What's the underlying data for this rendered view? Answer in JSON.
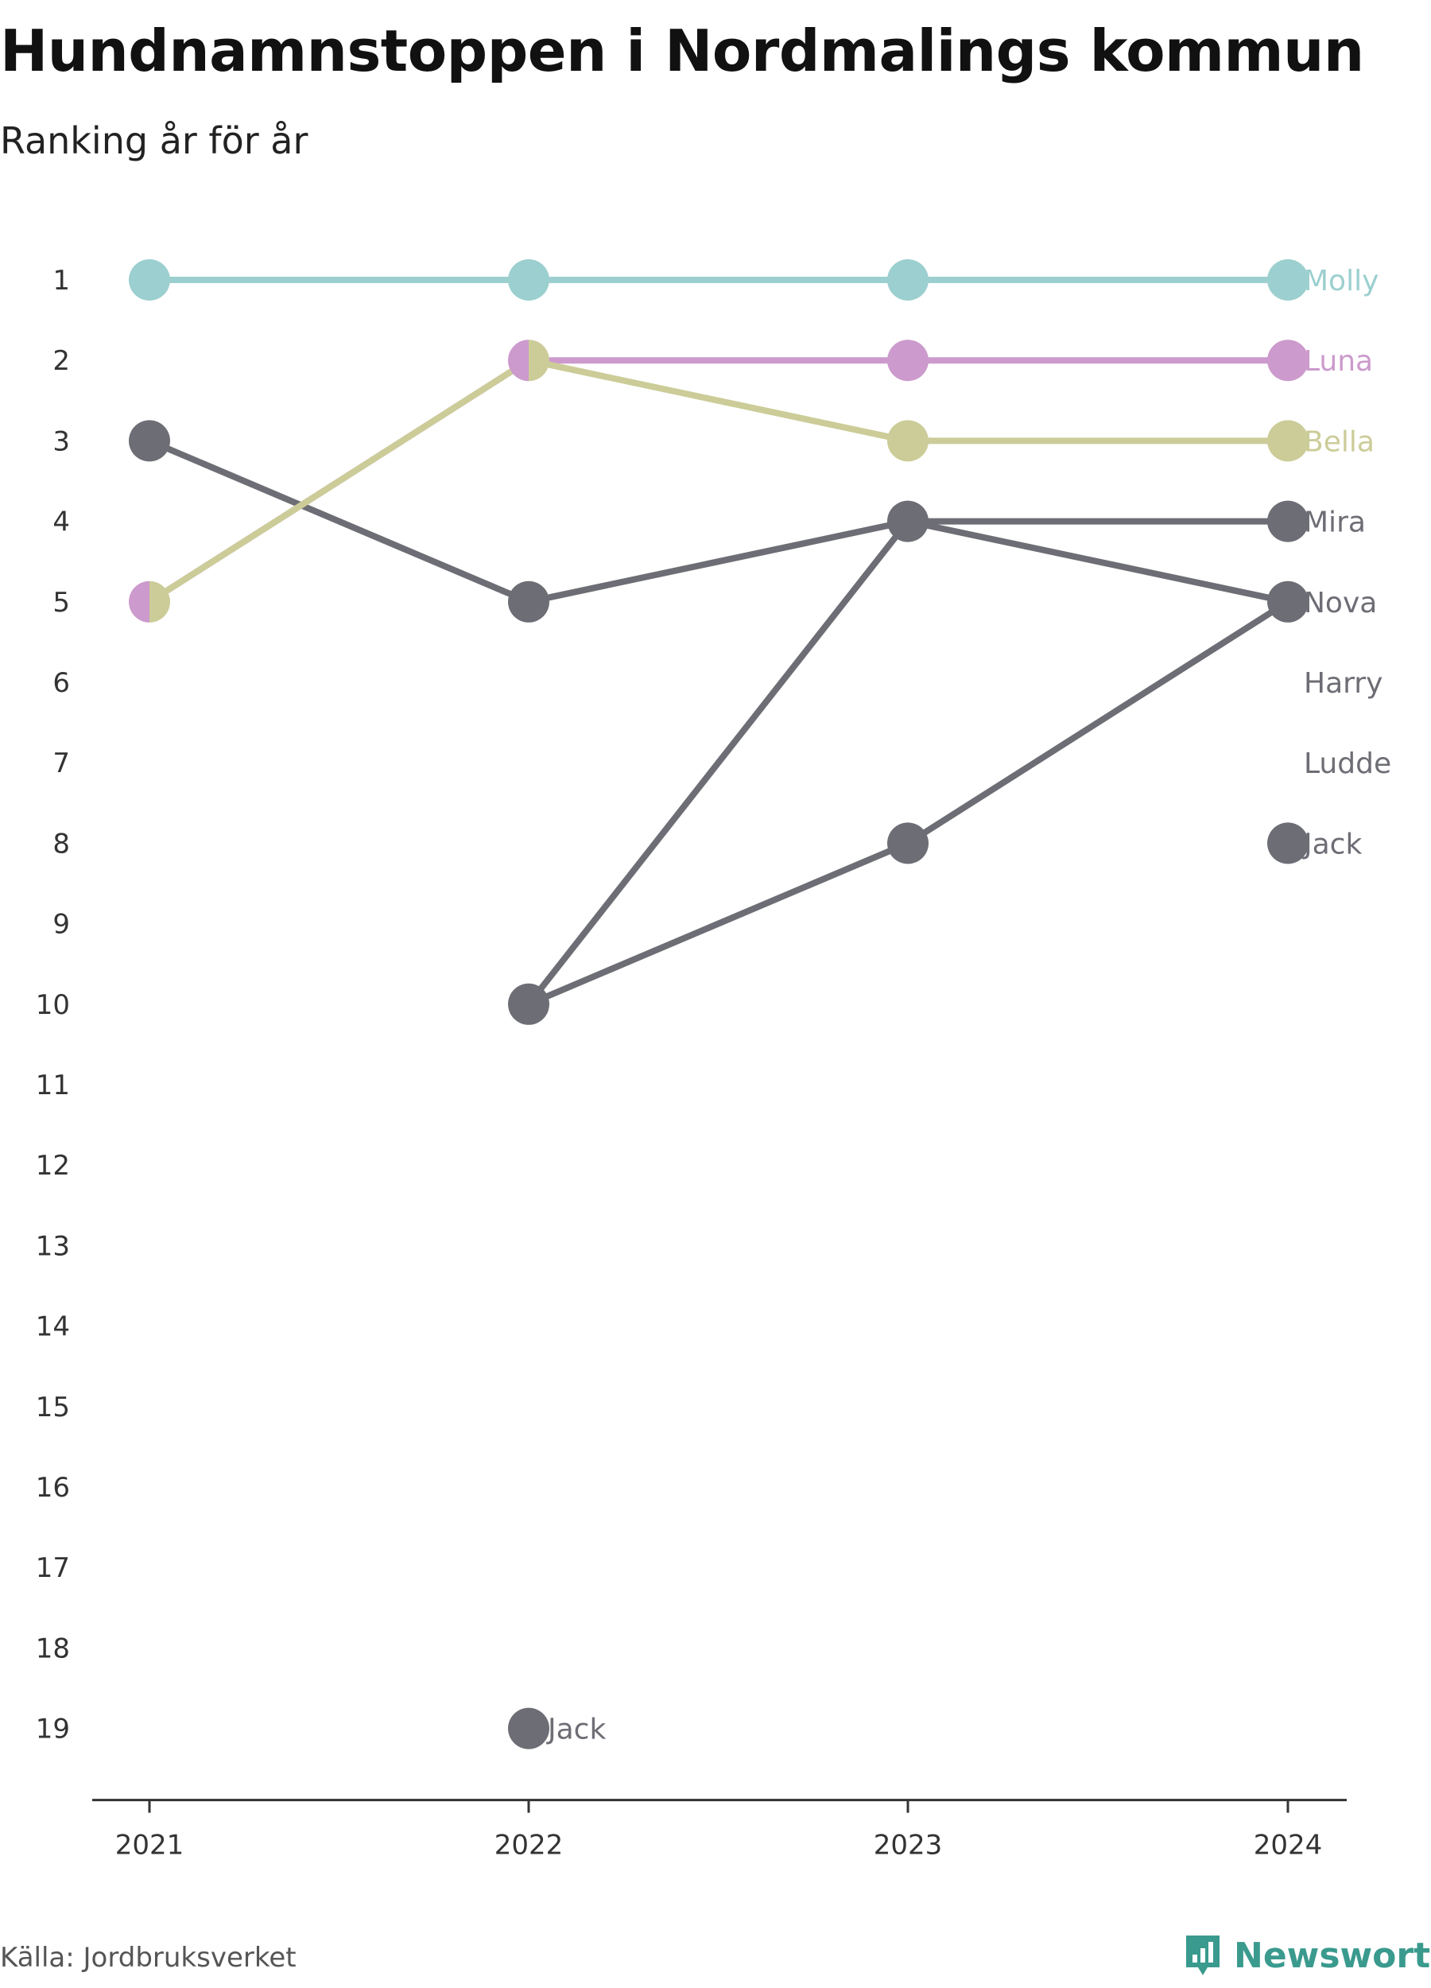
{
  "chart_data": {
    "type": "line",
    "title": "Hundnamnstoppen i Nordmalings kommun",
    "subtitle": "Ranking år för år",
    "x": [
      "2021",
      "2022",
      "2023",
      "2024"
    ],
    "y_ticks": [
      "1",
      "2",
      "3",
      "4",
      "5",
      "6",
      "7",
      "8",
      "9",
      "10",
      "11",
      "12",
      "13",
      "14",
      "15",
      "16",
      "17",
      "18",
      "19"
    ],
    "ylim": [
      1,
      19
    ],
    "y_reversed": true,
    "grid": false,
    "series": [
      {
        "name": "Molly",
        "color": "#9ccfcf",
        "values": [
          1,
          1,
          1,
          1
        ]
      },
      {
        "name": "Luna",
        "color": "#cc9acc",
        "values": [
          5,
          2,
          2,
          2
        ]
      },
      {
        "name": "Bella",
        "color": "#cccc99",
        "values": [
          5,
          2,
          3,
          3
        ]
      },
      {
        "name": "Mira",
        "color": "#6d6d75",
        "values": [
          null,
          10,
          4,
          4
        ]
      },
      {
        "name": "Nova",
        "color": "#6d6d75",
        "values": [
          3,
          5,
          4,
          5
        ]
      },
      {
        "name": "Harry",
        "color": "#6d6d75",
        "values": [
          null,
          10,
          8,
          5
        ]
      },
      {
        "name": "Ludde",
        "color": "#6d6d75",
        "values": [
          null,
          null,
          null,
          null
        ]
      },
      {
        "name": "Jack",
        "color": "#6d6d75",
        "values": [
          null,
          19,
          null,
          8
        ]
      }
    ],
    "end_labels": [
      {
        "text": "Molly",
        "rank": 1,
        "color": "#9ccfcf"
      },
      {
        "text": "Luna",
        "rank": 2,
        "color": "#cc9acc"
      },
      {
        "text": "Bella",
        "rank": 3,
        "color": "#cccc99"
      },
      {
        "text": "Mira",
        "rank": 4,
        "color": "#6d6d75"
      },
      {
        "text": "Nova",
        "rank": 5,
        "color": "#6d6d75"
      },
      {
        "text": "Harry",
        "rank": 6,
        "color": "#6d6d75"
      },
      {
        "text": "Ludde",
        "rank": 7,
        "color": "#6d6d75"
      },
      {
        "text": "Jack",
        "rank": 8,
        "color": "#6d6d75"
      }
    ],
    "point_labels": [
      {
        "text": "Jack",
        "x": "2022",
        "rank": 19,
        "color": "#6d6d75"
      }
    ]
  },
  "footer": {
    "source": "Källa: Jordbruksverket",
    "brand": "Newsworthy",
    "brand_icon": "newsworthy-logo-icon",
    "brand_color": "#3a9a8e"
  }
}
